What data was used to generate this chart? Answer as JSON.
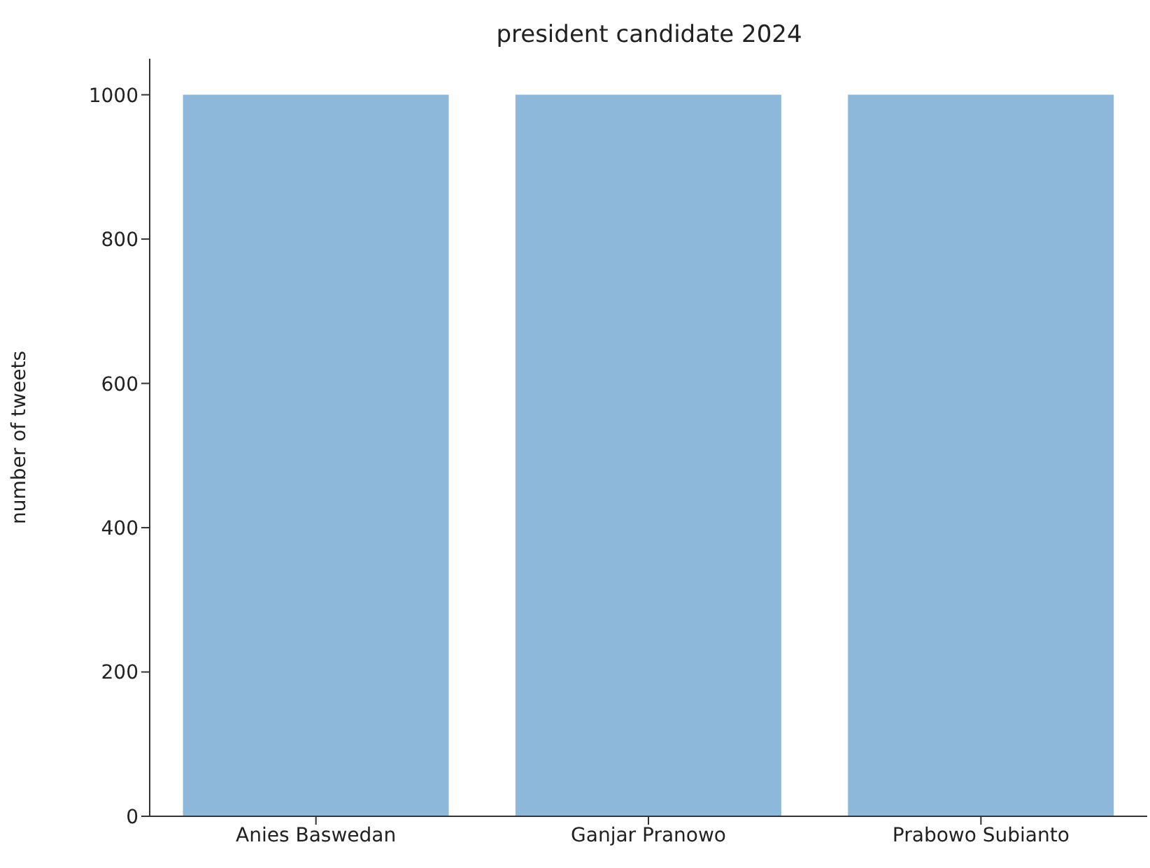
{
  "chart_data": {
    "type": "bar",
    "title": "president candidate 2024",
    "ylabel": "number of tweets",
    "categories": [
      "Anies Baswedan",
      "Ganjar Pranowo",
      "Prabowo Subianto"
    ],
    "values": [
      1000,
      1000,
      1000
    ],
    "color": "#8db8d9",
    "ylim": [
      0,
      1050
    ],
    "yticks": [
      0,
      200,
      400,
      600,
      800,
      1000
    ],
    "grid": false
  }
}
